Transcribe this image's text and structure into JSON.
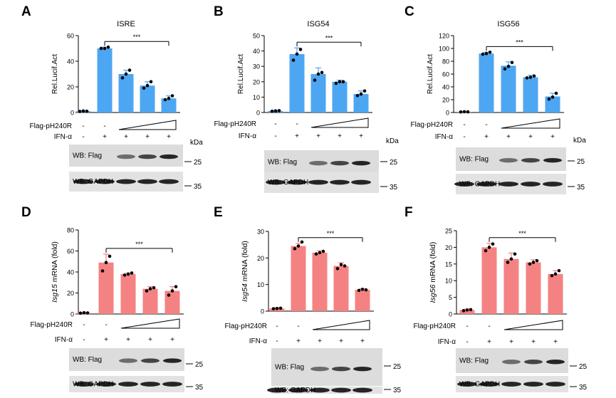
{
  "figure": {
    "axis_title_luc": "Rel.Lucif.Act",
    "mrna_suffix": " mRNA (fold)",
    "row_label_flag": "Flag-pH240R",
    "row_label_ifn": "IFN-α",
    "kda_label": "kDa",
    "wb_flag_label": "WB: Flag",
    "wb_gapdh_label": "WB: GAPDH",
    "marker_25": "25",
    "marker_35": "35",
    "significance": "***",
    "minus": "-",
    "plus": "+"
  },
  "chart_data": [
    {
      "type": "bar",
      "panel": "A",
      "title": "ISRE",
      "ylabel": "Rel.Lucif.Act",
      "ylim": [
        0,
        60
      ],
      "yticks": [
        0,
        20,
        40,
        60
      ],
      "colors": {
        "bar": "#4da6f2",
        "dots": "#000000"
      },
      "flag_row": [
        "-",
        "-",
        "ramp"
      ],
      "ifn_row": [
        "-",
        "+",
        "+",
        "+",
        "+"
      ],
      "values": [
        1,
        50,
        30,
        21,
        11
      ],
      "errors": [
        0.5,
        1,
        3,
        3,
        2
      ],
      "points": [
        [
          0.8,
          1.2,
          1.0
        ],
        [
          50,
          50,
          51
        ],
        [
          27,
          30,
          33
        ],
        [
          19,
          21,
          24
        ],
        [
          10,
          11,
          13
        ]
      ]
    },
    {
      "type": "bar",
      "panel": "B",
      "title": "ISG54",
      "ylabel": "Rel.Lucif.Act",
      "ylim": [
        0,
        50
      ],
      "yticks": [
        0,
        10,
        20,
        30,
        40,
        50
      ],
      "colors": {
        "bar": "#4da6f2",
        "dots": "#000000"
      },
      "flag_row": [
        "-",
        "-",
        "ramp"
      ],
      "ifn_row": [
        "-",
        "+",
        "+",
        "+",
        "+"
      ],
      "values": [
        1,
        38,
        25,
        20,
        12
      ],
      "errors": [
        0.5,
        4,
        4,
        1,
        2
      ],
      "points": [
        [
          0.8,
          1.0,
          1.2
        ],
        [
          34,
          38,
          41
        ],
        [
          21,
          25,
          26
        ],
        [
          19,
          20,
          20
        ],
        [
          11,
          12,
          14
        ]
      ]
    },
    {
      "type": "bar",
      "panel": "C",
      "title": "ISG56",
      "ylabel": "Rel.Lucif.Act",
      "ylim": [
        0,
        120
      ],
      "yticks": [
        0,
        20,
        40,
        60,
        80,
        100,
        120
      ],
      "colors": {
        "bar": "#4da6f2",
        "dots": "#000000"
      },
      "flag_row": [
        "-",
        "-",
        "ramp"
      ],
      "ifn_row": [
        "-",
        "+",
        "+",
        "+",
        "+"
      ],
      "values": [
        1,
        92,
        73,
        55,
        25
      ],
      "errors": [
        0.5,
        2,
        6,
        3,
        5
      ],
      "points": [
        [
          0.8,
          1.2,
          1.0
        ],
        [
          91,
          92,
          94
        ],
        [
          68,
          72,
          78
        ],
        [
          54,
          55,
          57
        ],
        [
          21,
          24,
          30
        ]
      ]
    },
    {
      "type": "bar",
      "panel": "D",
      "title": "",
      "ylabel": "Isg15",
      "ylim": [
        0,
        80
      ],
      "yticks": [
        0,
        20,
        40,
        60,
        80
      ],
      "colors": {
        "bar": "#f58282",
        "dots": "#000000"
      },
      "flag_row": [
        "-",
        "-",
        "ramp"
      ],
      "ifn_row": [
        "-",
        "+",
        "+",
        "+",
        "+"
      ],
      "values": [
        1,
        49,
        38,
        24,
        22
      ],
      "errors": [
        0.5,
        8,
        1,
        2,
        4
      ],
      "points": [
        [
          0.8,
          1.2,
          1.0
        ],
        [
          41,
          49,
          55
        ],
        [
          37,
          38,
          39
        ],
        [
          22,
          24,
          25
        ],
        [
          18,
          22,
          26
        ]
      ]
    },
    {
      "type": "bar",
      "panel": "E",
      "title": "",
      "ylabel": "Isg54",
      "ylim": [
        0,
        30
      ],
      "yticks": [
        0,
        10,
        20,
        30
      ],
      "colors": {
        "bar": "#f58282",
        "dots": "#000000"
      },
      "flag_row": [
        "-",
        "-",
        "ramp"
      ],
      "ifn_row": [
        "-",
        "+",
        "+",
        "+",
        "+"
      ],
      "values": [
        1,
        24.5,
        22,
        17,
        8
      ],
      "errors": [
        0.3,
        1,
        0.7,
        1.2,
        0.5
      ],
      "points": [
        [
          0.9,
          1.0,
          1.1
        ],
        [
          23.5,
          24.5,
          26
        ],
        [
          21.5,
          22,
          22.5
        ],
        [
          16,
          17.5,
          17
        ],
        [
          7.8,
          8.2,
          8
        ]
      ]
    },
    {
      "type": "bar",
      "panel": "F",
      "title": "",
      "ylabel": "Isg56",
      "ylim": [
        0,
        25
      ],
      "yticks": [
        0,
        5,
        10,
        15,
        20,
        25
      ],
      "colors": {
        "bar": "#f58282",
        "dots": "#000000"
      },
      "flag_row": [
        "-",
        "-",
        "ramp"
      ],
      "ifn_row": [
        "-",
        "+",
        "+",
        "+",
        "+"
      ],
      "values": [
        1.2,
        20,
        16.5,
        15.5,
        12
      ],
      "errors": [
        0.3,
        1.2,
        1.8,
        0.8,
        1
      ],
      "points": [
        [
          1.0,
          1.2,
          1.3
        ],
        [
          19,
          20,
          21
        ],
        [
          15.5,
          16.5,
          18
        ],
        [
          15,
          15.5,
          16
        ],
        [
          11.5,
          12,
          13
        ]
      ]
    }
  ]
}
